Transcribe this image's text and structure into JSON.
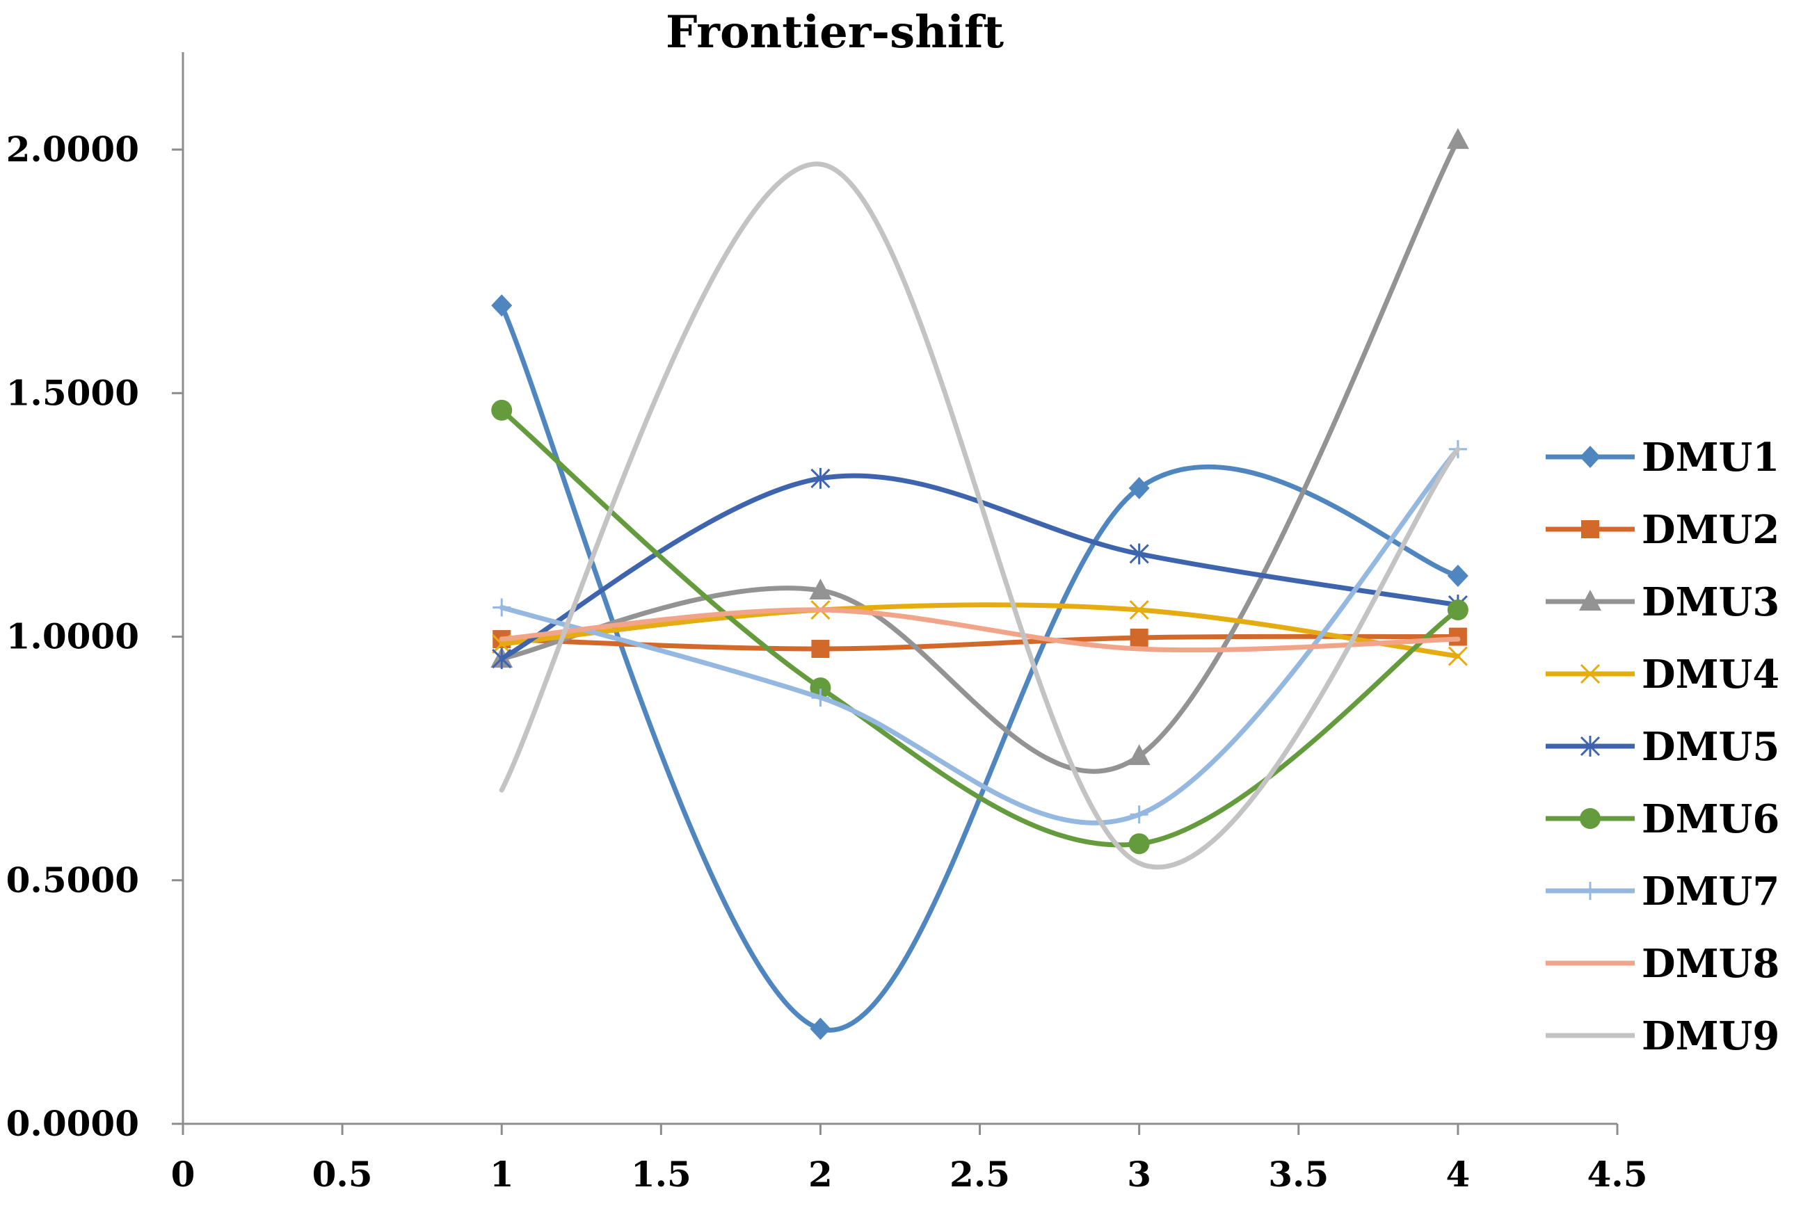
{
  "chart_data": {
    "type": "line",
    "title": "Frontier-shift",
    "xlabel": "",
    "ylabel": "",
    "xlim": [
      0,
      4.5
    ],
    "ylim": [
      0,
      2.2
    ],
    "x_ticks": [
      "0",
      "0.5",
      "1",
      "1.5",
      "2",
      "2.5",
      "3",
      "3.5",
      "4",
      "4.5"
    ],
    "y_ticks": [
      "0.0000",
      "0.5000",
      "1.0000",
      "1.5000",
      "2.0000"
    ],
    "x": [
      1,
      2,
      3,
      4
    ],
    "smooth": true,
    "grid": false,
    "legend_position": "right",
    "series": [
      {
        "name": "DMU1",
        "values": [
          1.68,
          0.195,
          1.305,
          1.125
        ],
        "color": "#4f86c0",
        "marker": "diamond"
      },
      {
        "name": "DMU2",
        "values": [
          0.995,
          0.975,
          0.998,
          1.0
        ],
        "color": "#d2692b",
        "marker": "square"
      },
      {
        "name": "DMU3",
        "values": [
          0.955,
          1.095,
          0.755,
          2.02
        ],
        "color": "#939393",
        "marker": "triangle"
      },
      {
        "name": "DMU4",
        "values": [
          0.985,
          1.055,
          1.055,
          0.96
        ],
        "color": "#e4ac10",
        "marker": "x"
      },
      {
        "name": "DMU5",
        "values": [
          0.955,
          1.325,
          1.17,
          1.065
        ],
        "color": "#3e64ae",
        "marker": "asterisk"
      },
      {
        "name": "DMU6",
        "values": [
          1.465,
          0.895,
          0.575,
          1.055
        ],
        "color": "#649b3c",
        "marker": "circle"
      },
      {
        "name": "DMU7",
        "values": [
          1.06,
          0.875,
          0.635,
          1.385
        ],
        "color": "#94b8e0",
        "marker": "plus"
      },
      {
        "name": "DMU8",
        "values": [
          0.995,
          1.055,
          0.975,
          0.995
        ],
        "color": "#f2a488",
        "marker": "none"
      },
      {
        "name": "DMU9",
        "values": [
          0.685,
          1.97,
          0.535,
          1.385
        ],
        "color": "#c3c3c3",
        "marker": "none"
      }
    ]
  }
}
